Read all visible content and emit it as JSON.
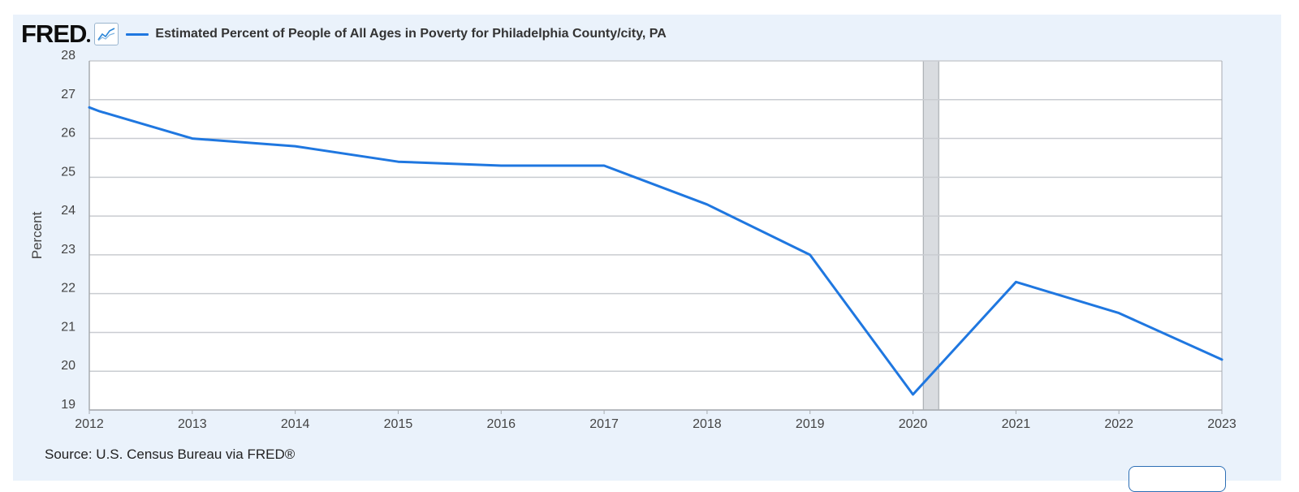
{
  "header": {
    "logo_text": "FRED",
    "graph_icon": "line-graph-icon"
  },
  "source": {
    "text": "Source: U.S. Census Bureau via FRED®"
  },
  "colors": {
    "line": "#1f77e0",
    "recession": "#d9dce0",
    "grid": "#c9ccd1",
    "panel": "#eaf2fb"
  },
  "chart_data": {
    "type": "line",
    "title": "",
    "xlabel": "",
    "ylabel": "Percent",
    "ylim": [
      19,
      28
    ],
    "yticks": [
      19,
      20,
      21,
      22,
      23,
      24,
      25,
      26,
      27,
      28
    ],
    "xlim": [
      2012,
      2023
    ],
    "xticks": [
      "2012",
      "2013",
      "2014",
      "2015",
      "2016",
      "2017",
      "2018",
      "2019",
      "2020",
      "2021",
      "2022",
      "2023"
    ],
    "grid": true,
    "recession_band": [
      2020.1,
      2020.25
    ],
    "series": [
      {
        "name": "Estimated Percent of People of All Ages in Poverty for Philadelphia County/city, PA",
        "x": [
          2012,
          2012.1,
          2013,
          2014,
          2015,
          2016,
          2017,
          2018,
          2019,
          2020,
          2021,
          2022,
          2023
        ],
        "values": [
          26.8,
          26.7,
          26.0,
          25.8,
          25.4,
          25.3,
          25.3,
          24.3,
          23.0,
          19.4,
          22.3,
          21.5,
          20.3
        ]
      }
    ]
  }
}
